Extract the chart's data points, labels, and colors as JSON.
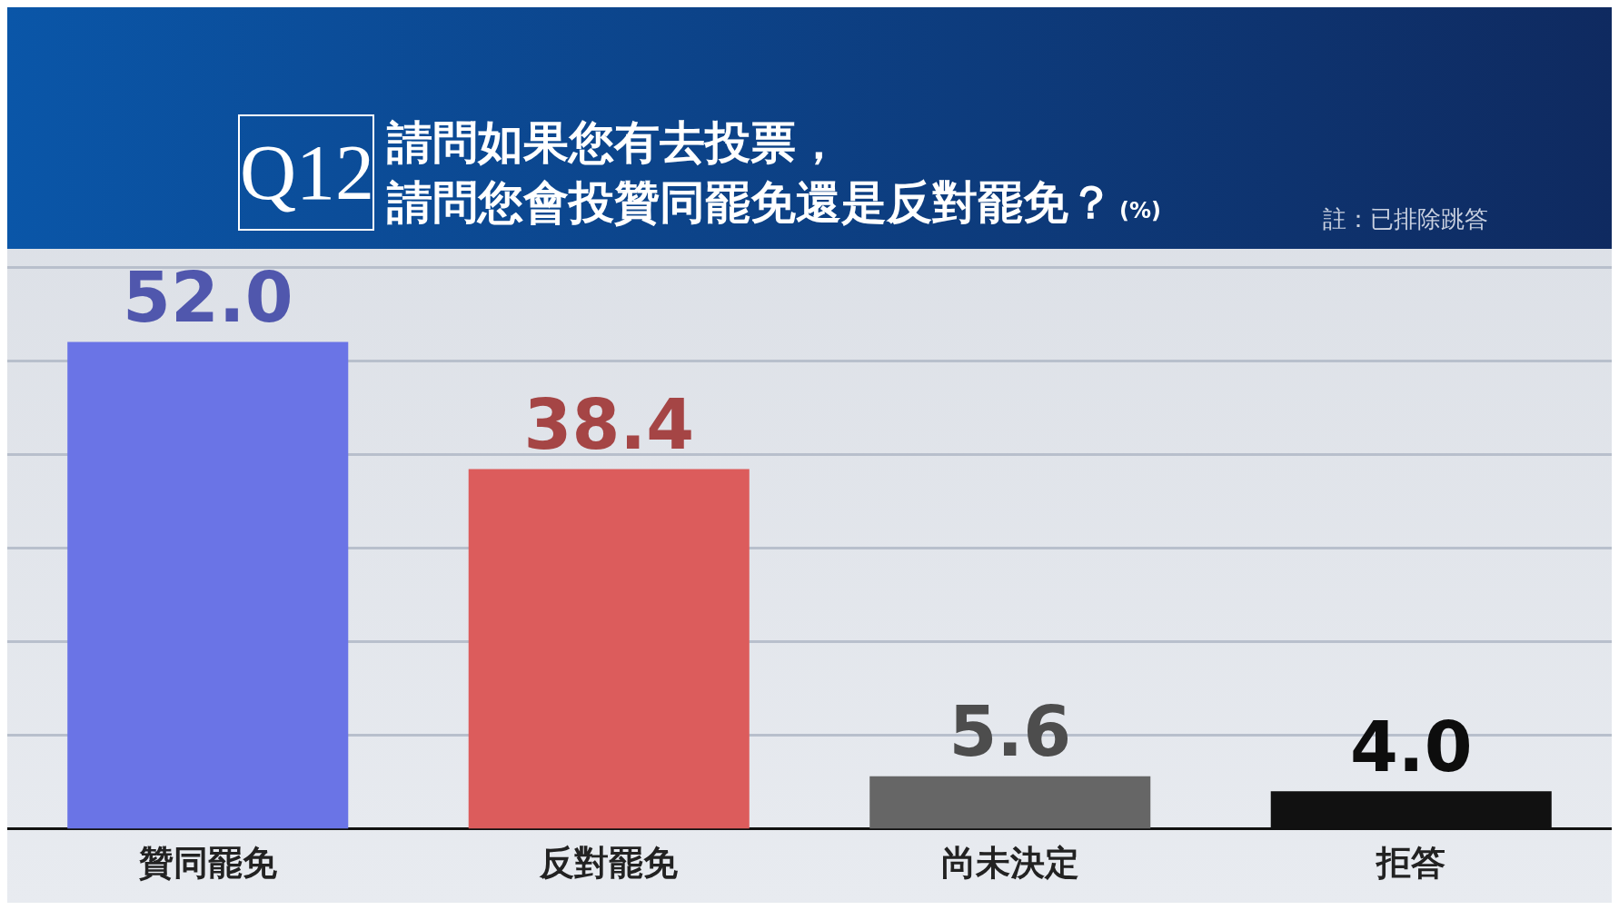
{
  "chart_data": {
    "type": "bar",
    "title": "請問如果您有去投票，",
    "subtitle": "請問您會投贊同罷免還是反對罷免？",
    "ylabel": "(%)",
    "annotations": [
      "Q12",
      "註：已排除跳答"
    ],
    "categories": [
      "贊同罷免",
      "反對罷免",
      "尚未決定",
      "拒答"
    ],
    "values": [
      52.0,
      38.4,
      5.6,
      4.0
    ],
    "colors": [
      "#6a74e6",
      "#dc5c5c",
      "#666666",
      "#111111"
    ],
    "value_labels": [
      "52.0",
      "38.4",
      "5.6",
      "4.0"
    ],
    "ylim": [
      0,
      60
    ],
    "yticks": [
      {
        "value": 10,
        "label": null
      },
      {
        "value": 20,
        "label": null
      },
      {
        "value": 30,
        "label": null
      },
      {
        "value": 40,
        "label": null
      },
      {
        "value": 50,
        "label": null
      },
      {
        "value": 60,
        "label": null
      }
    ],
    "grid": "y",
    "tick_labels": "x",
    "legend": false
  }
}
